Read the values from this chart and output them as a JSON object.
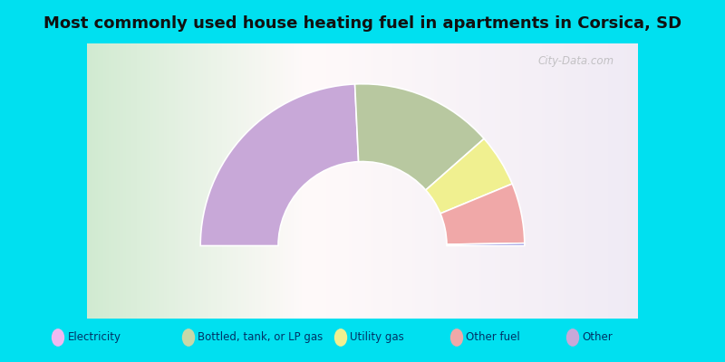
{
  "title": "Most commonly used house heating fuel in apartments in Apartments in Corsica, SD",
  "title_text": "Most commonly used house heating fuel in apartments in Corsica, SD",
  "title_fontsize": 13,
  "background_color": "#00e0f0",
  "chart_bg_color": "#d8ecd8",
  "watermark": "City-Data.com",
  "segments": [
    {
      "label": "Other",
      "pct": 48.5,
      "color": "#c8a8d8"
    },
    {
      "label": "Bottled, tank, or LP gas",
      "pct": 28.5,
      "color": "#b8c8a0"
    },
    {
      "label": "Utility gas",
      "pct": 10.5,
      "color": "#f0f090"
    },
    {
      "label": "Other fuel",
      "pct": 12.0,
      "color": "#f0a8a8"
    },
    {
      "label": "Electricity",
      "pct": 0.5,
      "color": "#9090e0"
    }
  ],
  "legend_items": [
    {
      "label": "Electricity",
      "color": "#f0b8f0"
    },
    {
      "label": "Bottled, tank, or LP gas",
      "color": "#c8d8a8"
    },
    {
      "label": "Utility gas",
      "color": "#f0f090"
    },
    {
      "label": "Other fuel",
      "color": "#f0a8a8"
    },
    {
      "label": "Other",
      "color": "#c8a8d8"
    }
  ],
  "inner_r": 0.52,
  "outer_r": 1.0
}
